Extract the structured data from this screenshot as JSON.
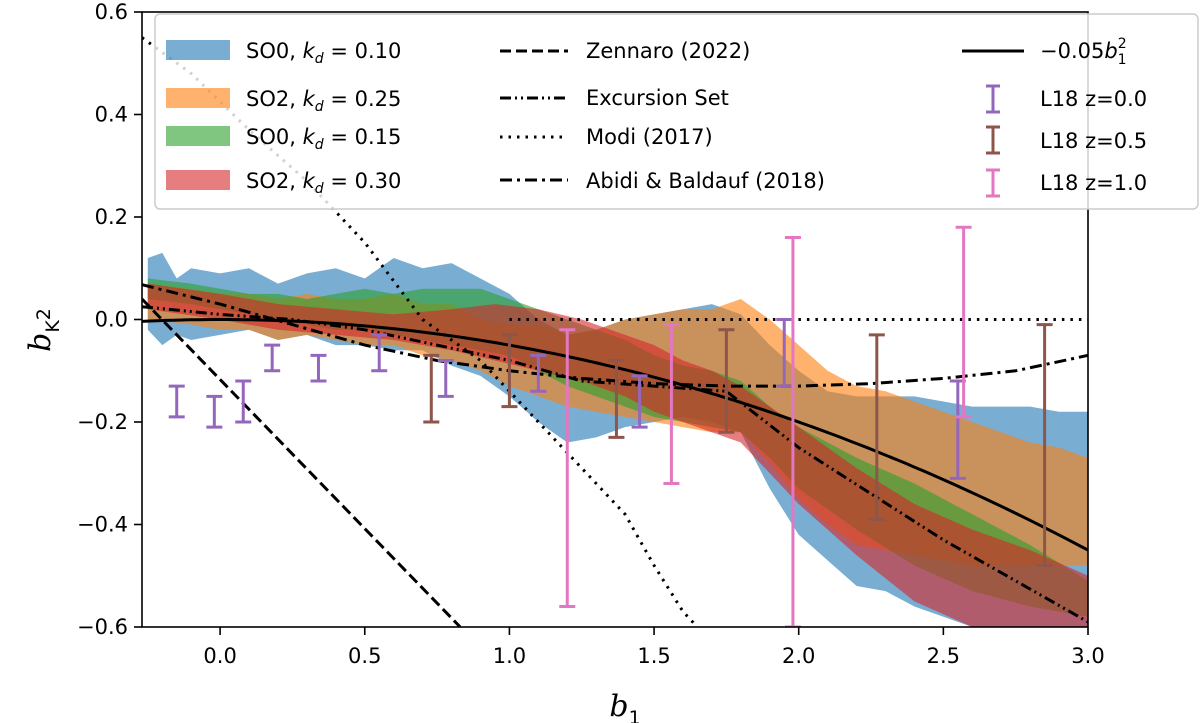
{
  "chart_data": {
    "type": "line",
    "title": "",
    "xlabel": "b_1",
    "ylabel": "b_{K^2}",
    "xlim": [
      -0.27,
      3.0
    ],
    "ylim": [
      -0.6,
      0.6
    ],
    "xticks": [
      0.0,
      0.5,
      1.0,
      1.5,
      2.0,
      2.5,
      3.0
    ],
    "xtick_labels": [
      "0.0",
      "0.5",
      "1.0",
      "1.5",
      "2.0",
      "2.5",
      "3.0"
    ],
    "yticks": [
      -0.6,
      -0.4,
      -0.2,
      0.0,
      0.2,
      0.4,
      0.6
    ],
    "ytick_labels": [
      "−0.6",
      "−0.4",
      "−0.2",
      "0.0",
      "0.2",
      "0.4",
      "0.6"
    ],
    "grid": false,
    "legend_position": "top",
    "colors": {
      "so0_010": "#1f77b4",
      "so2_025": "#ff7f0e",
      "so0_015": "#2ca02c",
      "so2_030": "#d62728",
      "l18_z00": "#9467bd",
      "l18_z05": "#8c564b",
      "l18_z10": "#e377c2"
    },
    "bands": [
      {
        "name": "SO0, k_d = 0.10",
        "label_prefix": "SO0, ",
        "label_value": "0.10",
        "color": "#1f77b4",
        "alpha": 0.6,
        "x": [
          -0.25,
          -0.2,
          -0.15,
          -0.1,
          0.0,
          0.1,
          0.2,
          0.3,
          0.4,
          0.5,
          0.6,
          0.7,
          0.8,
          0.9,
          1.0,
          1.1,
          1.2,
          1.3,
          1.4,
          1.5,
          1.6,
          1.7,
          1.8,
          1.9,
          2.0,
          2.1,
          2.2,
          2.3,
          2.4,
          2.5,
          2.6,
          2.7,
          2.8,
          2.9,
          3.0
        ],
        "upper": [
          0.12,
          0.13,
          0.08,
          0.1,
          0.09,
          0.1,
          0.07,
          0.09,
          0.1,
          0.08,
          0.12,
          0.1,
          0.11,
          0.08,
          0.05,
          0.0,
          -0.03,
          -0.02,
          0.0,
          0.01,
          0.02,
          0.03,
          0.01,
          -0.05,
          -0.1,
          -0.14,
          -0.15,
          -0.15,
          -0.15,
          -0.16,
          -0.17,
          -0.17,
          -0.17,
          -0.18,
          -0.18
        ],
        "lower": [
          -0.02,
          -0.05,
          -0.03,
          -0.04,
          -0.03,
          -0.02,
          -0.04,
          -0.03,
          -0.05,
          -0.05,
          -0.06,
          -0.06,
          -0.09,
          -0.11,
          -0.15,
          -0.2,
          -0.24,
          -0.23,
          -0.21,
          -0.2,
          -0.19,
          -0.2,
          -0.22,
          -0.33,
          -0.42,
          -0.47,
          -0.52,
          -0.53,
          -0.56,
          -0.58,
          -0.6,
          -0.6,
          -0.6,
          -0.6,
          -0.6
        ]
      },
      {
        "name": "SO2, k_d = 0.25",
        "label_prefix": "SO2, ",
        "label_value": "0.25",
        "color": "#ff7f0e",
        "alpha": 0.6,
        "x": [
          -0.25,
          -0.1,
          0.0,
          0.1,
          0.2,
          0.3,
          0.4,
          0.5,
          0.6,
          0.7,
          0.8,
          0.9,
          1.0,
          1.1,
          1.2,
          1.3,
          1.4,
          1.5,
          1.6,
          1.7,
          1.8,
          1.9,
          2.0,
          2.1,
          2.2,
          2.3,
          2.4,
          2.5,
          2.6,
          2.7,
          2.8,
          2.9,
          3.0
        ],
        "upper": [
          0.07,
          0.06,
          0.05,
          0.05,
          0.04,
          0.05,
          0.04,
          0.04,
          0.05,
          0.03,
          0.03,
          0.0,
          -0.01,
          -0.01,
          -0.03,
          -0.02,
          0.0,
          0.01,
          0.02,
          0.02,
          0.04,
          0.0,
          -0.05,
          -0.1,
          -0.13,
          -0.14,
          -0.16,
          -0.18,
          -0.2,
          -0.22,
          -0.24,
          -0.25,
          -0.27
        ],
        "lower": [
          0.0,
          -0.01,
          -0.02,
          -0.02,
          -0.04,
          -0.03,
          -0.04,
          -0.05,
          -0.05,
          -0.07,
          -0.08,
          -0.1,
          -0.13,
          -0.15,
          -0.17,
          -0.18,
          -0.19,
          -0.2,
          -0.21,
          -0.22,
          -0.22,
          -0.28,
          -0.35,
          -0.4,
          -0.44,
          -0.45,
          -0.46,
          -0.47,
          -0.48,
          -0.48,
          -0.48,
          -0.48,
          -0.48
        ]
      },
      {
        "name": "SO0, k_d = 0.15",
        "label_prefix": "SO0, ",
        "label_value": "0.15",
        "color": "#2ca02c",
        "alpha": 0.6,
        "x": [
          -0.25,
          -0.1,
          0.0,
          0.1,
          0.2,
          0.3,
          0.4,
          0.5,
          0.6,
          0.7,
          0.8,
          0.9,
          1.0,
          1.1,
          1.2,
          1.3,
          1.4,
          1.5,
          1.6,
          1.7,
          1.8,
          1.9,
          2.0,
          2.2,
          2.4,
          2.6,
          2.8,
          3.0
        ],
        "upper": [
          0.08,
          0.07,
          0.06,
          0.05,
          0.05,
          0.04,
          0.05,
          0.06,
          0.05,
          0.06,
          0.06,
          0.06,
          0.04,
          0.02,
          0.0,
          -0.02,
          -0.04,
          -0.07,
          -0.09,
          -0.1,
          -0.12,
          -0.17,
          -0.21,
          -0.27,
          -0.32,
          -0.38,
          -0.44,
          -0.51
        ],
        "lower": [
          0.04,
          0.03,
          0.02,
          0.01,
          0.0,
          -0.01,
          -0.02,
          -0.02,
          -0.03,
          -0.04,
          -0.05,
          -0.06,
          -0.07,
          -0.1,
          -0.13,
          -0.15,
          -0.17,
          -0.19,
          -0.2,
          -0.21,
          -0.22,
          -0.27,
          -0.33,
          -0.41,
          -0.48,
          -0.53,
          -0.56,
          -0.58
        ]
      },
      {
        "name": "SO2, k_d = 0.30",
        "label_prefix": "SO2, ",
        "label_value": "0.30",
        "color": "#d62728",
        "alpha": 0.6,
        "x": [
          -0.25,
          0.0,
          0.2,
          0.4,
          0.6,
          0.8,
          0.95,
          1.1,
          1.25,
          1.4,
          1.5,
          1.6,
          1.7,
          1.8,
          1.9,
          2.0,
          2.2,
          2.4,
          2.6,
          2.8,
          3.0
        ],
        "upper": [
          0.07,
          0.05,
          0.03,
          0.02,
          0.01,
          0.02,
          0.03,
          0.02,
          0.0,
          -0.03,
          -0.05,
          -0.08,
          -0.1,
          -0.13,
          -0.17,
          -0.21,
          -0.29,
          -0.36,
          -0.41,
          -0.45,
          -0.5
        ],
        "lower": [
          0.02,
          0.0,
          -0.02,
          -0.03,
          -0.04,
          -0.06,
          -0.08,
          -0.1,
          -0.12,
          -0.15,
          -0.18,
          -0.2,
          -0.22,
          -0.24,
          -0.3,
          -0.36,
          -0.46,
          -0.55,
          -0.6,
          -0.6,
          -0.6
        ]
      }
    ],
    "lines": [
      {
        "name": "Zennaro (2022)",
        "style": "dashed",
        "x": [
          -0.27,
          0.83
        ],
        "y": [
          0.04,
          -0.6
        ]
      },
      {
        "name": "Excursion Set",
        "style": "dashdotdot",
        "x": [
          -0.27,
          0.0,
          0.25,
          0.5,
          0.75,
          1.0,
          1.25,
          1.5,
          1.75,
          2.0,
          2.25,
          2.5,
          2.75,
          3.0
        ],
        "y": [
          0.025,
          0.01,
          0.0,
          -0.02,
          -0.05,
          -0.08,
          -0.12,
          -0.13,
          -0.14,
          -0.25,
          -0.34,
          -0.43,
          -0.51,
          -0.59
        ]
      },
      {
        "name": "Modi (2017)",
        "style": "dotted",
        "x": [
          -0.27,
          -0.1,
          0.1,
          0.3,
          0.5,
          0.7,
          0.9,
          1.1,
          1.3,
          1.4,
          1.5,
          1.6,
          1.65
        ],
        "y": [
          0.55,
          0.48,
          0.37,
          0.27,
          0.15,
          0.0,
          -0.08,
          -0.2,
          -0.32,
          -0.38,
          -0.48,
          -0.57,
          -0.6
        ],
        "right_x": [
          1.0,
          3.0
        ],
        "right_y": [
          0.0,
          0.0
        ]
      },
      {
        "name": "Abidi & Baldauf (2018)",
        "style": "dashdot",
        "x": [
          -0.27,
          0.0,
          0.25,
          0.5,
          0.75,
          1.0,
          1.25,
          1.5,
          1.75,
          2.0,
          2.25,
          2.5,
          2.75,
          3.0
        ],
        "y": [
          0.068,
          0.03,
          -0.01,
          -0.05,
          -0.08,
          -0.1,
          -0.115,
          -0.125,
          -0.13,
          -0.13,
          -0.125,
          -0.115,
          -0.1,
          -0.07
        ]
      },
      {
        "name": "-0.05 b_1^2",
        "style": "solid",
        "formula_coef": -0.05
      }
    ],
    "errorbars": [
      {
        "name": "L18 z=0.0",
        "color": "#9467bd",
        "points": [
          {
            "x": -0.15,
            "low": -0.19,
            "high": -0.13
          },
          {
            "x": -0.02,
            "low": -0.21,
            "high": -0.15
          },
          {
            "x": 0.08,
            "low": -0.2,
            "high": -0.12
          },
          {
            "x": 0.18,
            "low": -0.1,
            "high": -0.05
          },
          {
            "x": 0.34,
            "low": -0.12,
            "high": -0.07
          },
          {
            "x": 0.55,
            "low": -0.1,
            "high": -0.03
          },
          {
            "x": 0.78,
            "low": -0.15,
            "high": -0.08
          },
          {
            "x": 1.1,
            "low": -0.14,
            "high": -0.07
          },
          {
            "x": 1.45,
            "low": -0.21,
            "high": -0.11
          },
          {
            "x": 1.95,
            "low": -0.13,
            "high": 0.0
          },
          {
            "x": 2.55,
            "low": -0.31,
            "high": -0.12
          }
        ]
      },
      {
        "name": "L18 z=0.5",
        "color": "#8c564b",
        "points": [
          {
            "x": 0.73,
            "low": -0.2,
            "high": -0.07
          },
          {
            "x": 1.0,
            "low": -0.17,
            "high": -0.03
          },
          {
            "x": 1.37,
            "low": -0.23,
            "high": -0.08
          },
          {
            "x": 1.75,
            "low": -0.22,
            "high": -0.02
          },
          {
            "x": 2.27,
            "low": -0.39,
            "high": -0.03
          },
          {
            "x": 2.85,
            "low": -0.48,
            "high": -0.01
          }
        ]
      },
      {
        "name": "L18 z=1.0",
        "color": "#e377c2",
        "points": [
          {
            "x": 1.2,
            "low": -0.56,
            "high": -0.02
          },
          {
            "x": 1.56,
            "low": -0.32,
            "high": -0.01
          },
          {
            "x": 1.98,
            "low": -0.6,
            "high": 0.16
          },
          {
            "x": 2.57,
            "low": -0.19,
            "high": 0.18
          }
        ]
      }
    ]
  },
  "legend": {
    "kd_symbol": "k",
    "kd_sub": "d",
    "eq": " = ",
    "col1": [
      {
        "prefix": "SO0, ",
        "value": "0.10"
      },
      {
        "prefix": "SO2, ",
        "value": "0.25"
      },
      {
        "prefix": "SO0, ",
        "value": "0.15"
      },
      {
        "prefix": "SO2, ",
        "value": "0.30"
      }
    ],
    "col2": [
      "Zennaro (2022)",
      "Excursion Set",
      "Modi (2017)",
      "Abidi & Baldauf (2018)"
    ],
    "col3_formula": {
      "coef": "−0.05",
      "var": "b",
      "sub": "1",
      "sup": "2"
    },
    "col3_errorbars": [
      "L18 z=0.0",
      "L18 z=0.5",
      "L18 z=1.0"
    ]
  },
  "axis_labels": {
    "x_main": "b",
    "x_sub": "1",
    "y_main": "b",
    "y_sub_k": "K",
    "y_sub_sup": "2"
  }
}
